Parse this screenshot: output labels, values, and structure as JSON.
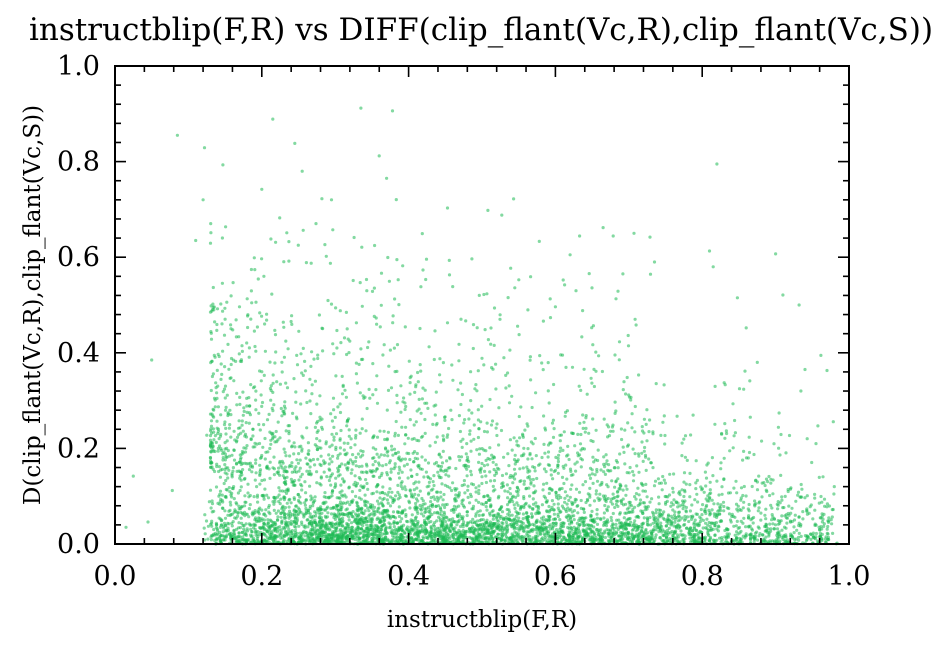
{
  "chart_data": {
    "type": "scatter",
    "title": "instructblip(F,R) vs DIFF(clip_flant(Vc,R),clip_flant(Vc,S))",
    "xlabel": "instructblip(F,R)",
    "ylabel": "D(clip_flant(Vc,R),clip_flant(Vc,S))",
    "xlim": [
      0.0,
      1.0
    ],
    "ylim": [
      0.0,
      1.0
    ],
    "xticks": [
      "0.0",
      "0.2",
      "0.4",
      "0.6",
      "0.8",
      "1.0"
    ],
    "yticks": [
      "0.0",
      "0.2",
      "0.4",
      "0.6",
      "0.8",
      "1.0"
    ],
    "grid": false,
    "marker_color": "#1db954",
    "series": [
      {
        "points": [
          [
            0.335,
            0.912
          ],
          [
            0.378,
            0.906
          ],
          [
            0.215,
            0.889
          ],
          [
            0.085,
            0.855
          ],
          [
            0.245,
            0.838
          ],
          [
            0.122,
            0.829
          ],
          [
            0.36,
            0.812
          ],
          [
            0.82,
            0.795
          ],
          [
            0.147,
            0.793
          ],
          [
            0.255,
            0.78
          ],
          [
            0.37,
            0.765
          ],
          [
            0.2,
            0.742
          ],
          [
            0.295,
            0.72
          ],
          [
            0.543,
            0.722
          ],
          [
            0.508,
            0.698
          ],
          [
            0.453,
            0.703
          ],
          [
            0.527,
            0.688
          ],
          [
            0.12,
            0.72
          ],
          [
            0.665,
            0.662
          ],
          [
            0.578,
            0.633
          ],
          [
            0.11,
            0.635
          ],
          [
            0.81,
            0.613
          ],
          [
            0.9,
            0.607
          ],
          [
            0.62,
            0.605
          ],
          [
            0.815,
            0.58
          ],
          [
            0.735,
            0.59
          ],
          [
            0.692,
            0.565
          ],
          [
            0.91,
            0.521
          ],
          [
            0.932,
            0.5
          ],
          [
            0.848,
            0.515
          ],
          [
            0.05,
            0.385
          ],
          [
            0.628,
            0.53
          ],
          [
            0.86,
            0.452
          ],
          [
            0.94,
            0.365
          ],
          [
            0.875,
            0.38
          ],
          [
            0.97,
            0.363
          ],
          [
            0.025,
            0.142
          ],
          [
            0.045,
            0.046
          ],
          [
            0.015,
            0.035
          ],
          [
            0.078,
            0.112
          ],
          [
            0.955,
            0.21
          ],
          [
            0.98,
            0.12
          ]
        ],
        "random_points": [
          {
            "count": 3200,
            "x_dist": "bimodal 0.3 / 0.65",
            "y_dist": "exponential mean 0.05",
            "note": "dense band near zero"
          },
          {
            "count": 1700,
            "x_dist": "uniform 0.13-0.98",
            "y_dist": "exponential mean 0.12"
          },
          {
            "count": 900,
            "x_dist": "peaked 0.2-0.6",
            "y_dist": "uniform 0.15-0.7"
          }
        ]
      }
    ]
  }
}
